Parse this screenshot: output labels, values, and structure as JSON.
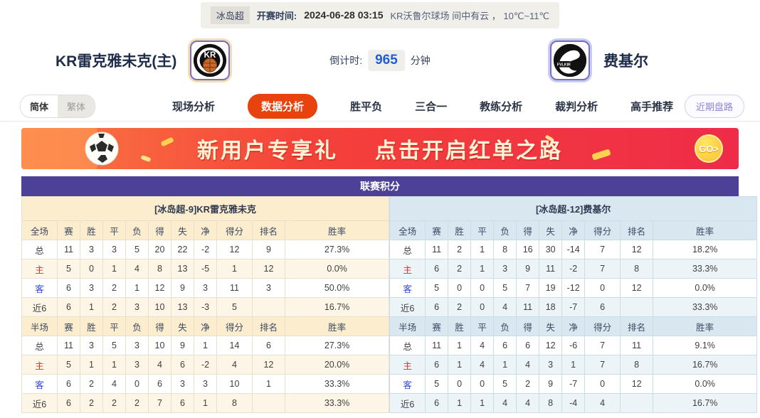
{
  "top_bar": {
    "league_badge": "冰岛超",
    "kickoff_label": "开赛时间:",
    "kickoff_time": "2024-06-28 03:15",
    "venue_weather": "KR沃鲁尔球场  间中有云 ，  10℃~11℃"
  },
  "header": {
    "home_team": "KR雷克雅未克(主)",
    "home_logo_text": "KR",
    "away_team": "费基尔",
    "away_logo_text": "FVLKIR",
    "countdown_label": "倒计时:",
    "countdown_value": "965",
    "countdown_unit": "分钟"
  },
  "nav": {
    "lang_simplified": "简体",
    "lang_traditional": "繁体",
    "items": [
      "现场分析",
      "数据分析",
      "胜平负",
      "三合一",
      "教练分析",
      "裁判分析",
      "高手推荐"
    ],
    "active_item": "数据分析",
    "recent_button": "近期盘路"
  },
  "banner": {
    "text_left": "新用户专享礼",
    "text_right": "点击开启红单之路",
    "go_label": "GO>"
  },
  "standings": {
    "title": "联赛积分",
    "full_label": "全场",
    "half_label": "半场",
    "columns": [
      "赛",
      "胜",
      "平",
      "负",
      "得",
      "失",
      "净",
      "得分",
      "排名",
      "胜率"
    ],
    "left": {
      "section_title": "[冰岛超-9]KR雷克雅未克",
      "full_rows": [
        {
          "label": "总",
          "values": [
            "11",
            "3",
            "3",
            "5",
            "20",
            "22",
            "-2",
            "12",
            "9",
            "27.3%"
          ]
        },
        {
          "label": "主",
          "values": [
            "5",
            "0",
            "1",
            "4",
            "8",
            "13",
            "-5",
            "1",
            "12",
            "0.0%"
          ]
        },
        {
          "label": "客",
          "values": [
            "6",
            "3",
            "2",
            "1",
            "12",
            "9",
            "3",
            "11",
            "3",
            "50.0%"
          ]
        },
        {
          "label": "近6",
          "values": [
            "6",
            "1",
            "2",
            "3",
            "10",
            "13",
            "-3",
            "5",
            "",
            "16.7%"
          ]
        }
      ],
      "half_rows": [
        {
          "label": "总",
          "values": [
            "11",
            "3",
            "5",
            "3",
            "10",
            "9",
            "1",
            "14",
            "6",
            "27.3%"
          ]
        },
        {
          "label": "主",
          "values": [
            "5",
            "1",
            "1",
            "3",
            "4",
            "6",
            "-2",
            "4",
            "12",
            "20.0%"
          ]
        },
        {
          "label": "客",
          "values": [
            "6",
            "2",
            "4",
            "0",
            "6",
            "3",
            "3",
            "10",
            "1",
            "33.3%"
          ]
        },
        {
          "label": "近6",
          "values": [
            "6",
            "2",
            "2",
            "2",
            "7",
            "6",
            "1",
            "8",
            "",
            "33.3%"
          ]
        }
      ]
    },
    "right": {
      "section_title": "[冰岛超-12]费基尔",
      "full_rows": [
        {
          "label": "总",
          "values": [
            "11",
            "2",
            "1",
            "8",
            "16",
            "30",
            "-14",
            "7",
            "12",
            "18.2%"
          ]
        },
        {
          "label": "主",
          "values": [
            "6",
            "2",
            "1",
            "3",
            "9",
            "11",
            "-2",
            "7",
            "8",
            "33.3%"
          ]
        },
        {
          "label": "客",
          "values": [
            "5",
            "0",
            "0",
            "5",
            "7",
            "19",
            "-12",
            "0",
            "12",
            "0.0%"
          ]
        },
        {
          "label": "近6",
          "values": [
            "6",
            "2",
            "0",
            "4",
            "11",
            "18",
            "-7",
            "6",
            "",
            "33.3%"
          ]
        }
      ],
      "half_rows": [
        {
          "label": "总",
          "values": [
            "11",
            "1",
            "4",
            "6",
            "6",
            "12",
            "-6",
            "7",
            "11",
            "9.1%"
          ]
        },
        {
          "label": "主",
          "values": [
            "6",
            "1",
            "4",
            "1",
            "4",
            "3",
            "1",
            "7",
            "8",
            "16.7%"
          ]
        },
        {
          "label": "客",
          "values": [
            "5",
            "0",
            "0",
            "5",
            "2",
            "9",
            "-7",
            "0",
            "12",
            "0.0%"
          ]
        },
        {
          "label": "近6",
          "values": [
            "6",
            "1",
            "1",
            "4",
            "4",
            "8",
            "-4",
            "4",
            "",
            "16.7%"
          ]
        }
      ]
    }
  },
  "colors": {
    "accent_orange": "#e8430f",
    "table_header_purple": "#4c4097",
    "left_section_bg": "#fbedcd",
    "right_section_bg": "#d9e8f0",
    "home_row_red": "#d03030",
    "away_row_blue": "#2f4bd0",
    "countdown_blue": "#1f5fd0",
    "banner_red": "#ee2c48"
  }
}
